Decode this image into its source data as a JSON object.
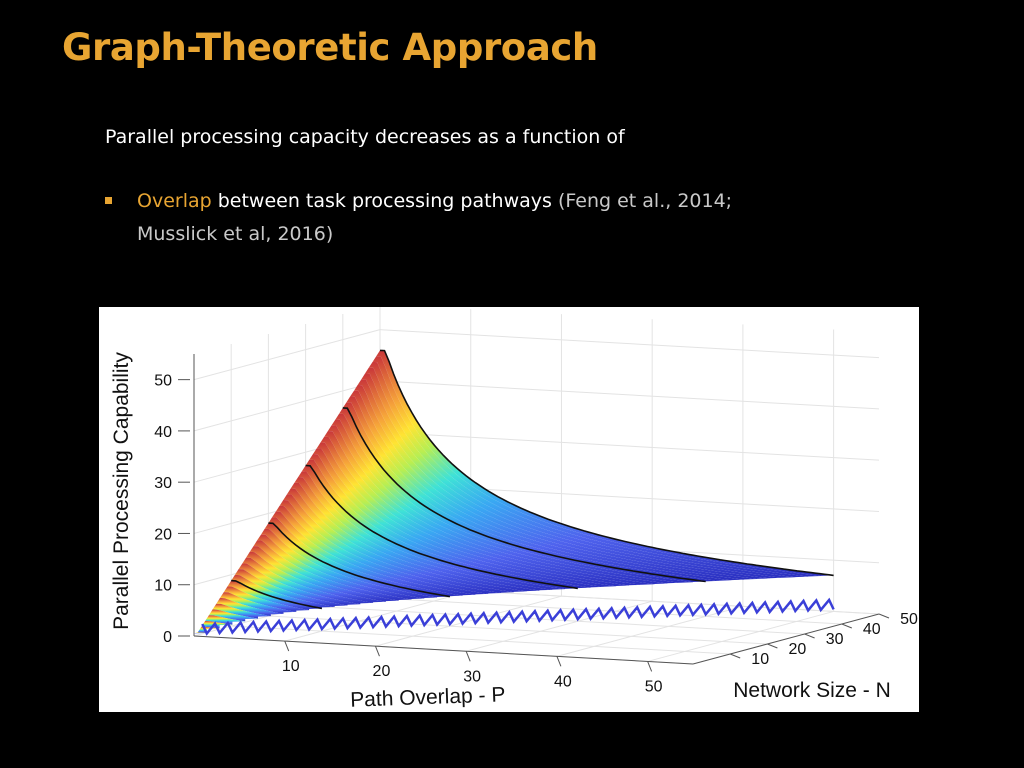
{
  "slide": {
    "title": "Graph-Theoretic Approach",
    "intro": "Parallel processing capacity decreases as a function of",
    "bullet": {
      "highlight": "Overlap",
      "text": " between task processing pathways ",
      "citation_line1": "(Feng et al., 2014;",
      "citation_line2": "Musslick et al, 2016)"
    }
  },
  "colors": {
    "title": "#e8a532",
    "highlight": "#e8a532",
    "background": "#000000"
  },
  "chart_data": {
    "type": "surface",
    "xlabel": "Path Overlap - P",
    "ylabel": "Network Size - N",
    "zlabel": "Parallel Processing Capability",
    "xlim": [
      0,
      55
    ],
    "ylim": [
      0,
      50
    ],
    "zlim": [
      0,
      55
    ],
    "x_ticks": [
      "10",
      "20",
      "30",
      "40",
      "50"
    ],
    "y_ticks": [
      "10",
      "20",
      "30",
      "40",
      "50"
    ],
    "z_ticks": [
      "0",
      "10",
      "20",
      "30",
      "40",
      "50"
    ],
    "colormap": "parula/jet",
    "grid": true
  }
}
